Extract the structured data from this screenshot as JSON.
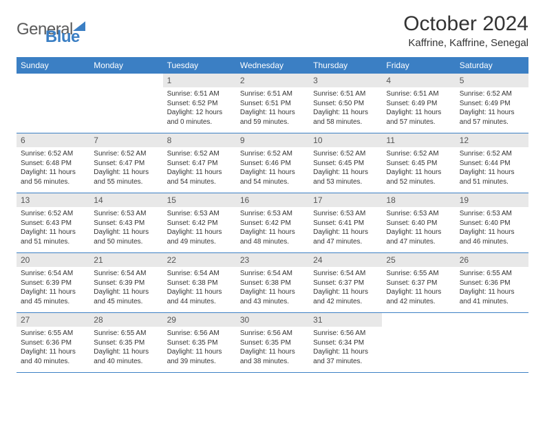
{
  "logo": {
    "text1": "General",
    "text2": "Blue"
  },
  "title": "October 2024",
  "location": "Kaffrine, Kaffrine, Senegal",
  "colors": {
    "brand": "#3b7fc4",
    "daynum_bg": "#e8e8e8",
    "text": "#333333",
    "logo_gray": "#5a5a5a"
  },
  "weekdays": [
    "Sunday",
    "Monday",
    "Tuesday",
    "Wednesday",
    "Thursday",
    "Friday",
    "Saturday"
  ],
  "weeks": [
    [
      null,
      null,
      {
        "n": "1",
        "sr": "6:51 AM",
        "ss": "6:52 PM",
        "dl": "12 hours and 0 minutes."
      },
      {
        "n": "2",
        "sr": "6:51 AM",
        "ss": "6:51 PM",
        "dl": "11 hours and 59 minutes."
      },
      {
        "n": "3",
        "sr": "6:51 AM",
        "ss": "6:50 PM",
        "dl": "11 hours and 58 minutes."
      },
      {
        "n": "4",
        "sr": "6:51 AM",
        "ss": "6:49 PM",
        "dl": "11 hours and 57 minutes."
      },
      {
        "n": "5",
        "sr": "6:52 AM",
        "ss": "6:49 PM",
        "dl": "11 hours and 57 minutes."
      }
    ],
    [
      {
        "n": "6",
        "sr": "6:52 AM",
        "ss": "6:48 PM",
        "dl": "11 hours and 56 minutes."
      },
      {
        "n": "7",
        "sr": "6:52 AM",
        "ss": "6:47 PM",
        "dl": "11 hours and 55 minutes."
      },
      {
        "n": "8",
        "sr": "6:52 AM",
        "ss": "6:47 PM",
        "dl": "11 hours and 54 minutes."
      },
      {
        "n": "9",
        "sr": "6:52 AM",
        "ss": "6:46 PM",
        "dl": "11 hours and 54 minutes."
      },
      {
        "n": "10",
        "sr": "6:52 AM",
        "ss": "6:45 PM",
        "dl": "11 hours and 53 minutes."
      },
      {
        "n": "11",
        "sr": "6:52 AM",
        "ss": "6:45 PM",
        "dl": "11 hours and 52 minutes."
      },
      {
        "n": "12",
        "sr": "6:52 AM",
        "ss": "6:44 PM",
        "dl": "11 hours and 51 minutes."
      }
    ],
    [
      {
        "n": "13",
        "sr": "6:52 AM",
        "ss": "6:43 PM",
        "dl": "11 hours and 51 minutes."
      },
      {
        "n": "14",
        "sr": "6:53 AM",
        "ss": "6:43 PM",
        "dl": "11 hours and 50 minutes."
      },
      {
        "n": "15",
        "sr": "6:53 AM",
        "ss": "6:42 PM",
        "dl": "11 hours and 49 minutes."
      },
      {
        "n": "16",
        "sr": "6:53 AM",
        "ss": "6:42 PM",
        "dl": "11 hours and 48 minutes."
      },
      {
        "n": "17",
        "sr": "6:53 AM",
        "ss": "6:41 PM",
        "dl": "11 hours and 47 minutes."
      },
      {
        "n": "18",
        "sr": "6:53 AM",
        "ss": "6:40 PM",
        "dl": "11 hours and 47 minutes."
      },
      {
        "n": "19",
        "sr": "6:53 AM",
        "ss": "6:40 PM",
        "dl": "11 hours and 46 minutes."
      }
    ],
    [
      {
        "n": "20",
        "sr": "6:54 AM",
        "ss": "6:39 PM",
        "dl": "11 hours and 45 minutes."
      },
      {
        "n": "21",
        "sr": "6:54 AM",
        "ss": "6:39 PM",
        "dl": "11 hours and 45 minutes."
      },
      {
        "n": "22",
        "sr": "6:54 AM",
        "ss": "6:38 PM",
        "dl": "11 hours and 44 minutes."
      },
      {
        "n": "23",
        "sr": "6:54 AM",
        "ss": "6:38 PM",
        "dl": "11 hours and 43 minutes."
      },
      {
        "n": "24",
        "sr": "6:54 AM",
        "ss": "6:37 PM",
        "dl": "11 hours and 42 minutes."
      },
      {
        "n": "25",
        "sr": "6:55 AM",
        "ss": "6:37 PM",
        "dl": "11 hours and 42 minutes."
      },
      {
        "n": "26",
        "sr": "6:55 AM",
        "ss": "6:36 PM",
        "dl": "11 hours and 41 minutes."
      }
    ],
    [
      {
        "n": "27",
        "sr": "6:55 AM",
        "ss": "6:36 PM",
        "dl": "11 hours and 40 minutes."
      },
      {
        "n": "28",
        "sr": "6:55 AM",
        "ss": "6:35 PM",
        "dl": "11 hours and 40 minutes."
      },
      {
        "n": "29",
        "sr": "6:56 AM",
        "ss": "6:35 PM",
        "dl": "11 hours and 39 minutes."
      },
      {
        "n": "30",
        "sr": "6:56 AM",
        "ss": "6:35 PM",
        "dl": "11 hours and 38 minutes."
      },
      {
        "n": "31",
        "sr": "6:56 AM",
        "ss": "6:34 PM",
        "dl": "11 hours and 37 minutes."
      },
      null,
      null
    ]
  ],
  "labels": {
    "sunrise": "Sunrise: ",
    "sunset": "Sunset: ",
    "daylight": "Daylight: "
  }
}
